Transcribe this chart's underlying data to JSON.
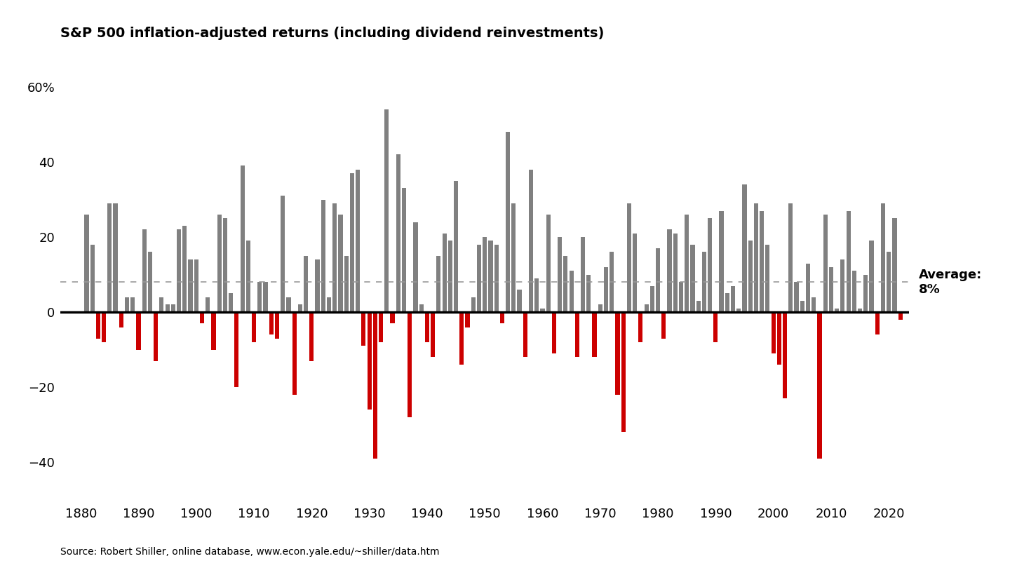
{
  "title": "S&P 500 inflation-adjusted returns (including dividend reinvestments)",
  "source": "Source: Robert Shiller, online database, www.econ.yale.edu/~shiller/data.htm",
  "average_label_line1": "Average:",
  "average_label_line2": "8%",
  "average_value": 8,
  "ylim": [
    -50,
    65
  ],
  "yticks": [
    -40,
    -20,
    0,
    20,
    40,
    60
  ],
  "positive_color": "#808080",
  "negative_color": "#CC0000",
  "average_line_color": "#999999",
  "background_color": "#ffffff",
  "data": {
    "1881": 26.0,
    "1882": 18.0,
    "1883": -7.0,
    "1884": -8.0,
    "1885": 29.0,
    "1886": 29.0,
    "1887": -4.0,
    "1888": 4.0,
    "1889": 4.0,
    "1890": -10.0,
    "1891": 22.0,
    "1892": 16.0,
    "1893": -13.0,
    "1894": 4.0,
    "1895": 2.0,
    "1896": 2.0,
    "1897": 22.0,
    "1898": 23.0,
    "1899": 14.0,
    "1900": 14.0,
    "1901": -3.0,
    "1902": 4.0,
    "1903": -10.0,
    "1904": 26.0,
    "1905": 25.0,
    "1906": 5.0,
    "1907": -20.0,
    "1908": 39.0,
    "1909": 19.0,
    "1910": -8.0,
    "1911": 8.0,
    "1912": 8.0,
    "1913": -6.0,
    "1914": -7.0,
    "1915": 31.0,
    "1916": 4.0,
    "1917": -22.0,
    "1918": 2.0,
    "1919": 15.0,
    "1920": -13.0,
    "1921": 14.0,
    "1922": 30.0,
    "1923": 4.0,
    "1924": 29.0,
    "1925": 26.0,
    "1926": 15.0,
    "1927": 37.0,
    "1928": 38.0,
    "1929": -9.0,
    "1930": -26.0,
    "1931": -39.0,
    "1932": -8.0,
    "1933": 54.0,
    "1934": -3.0,
    "1935": 42.0,
    "1936": 33.0,
    "1937": -28.0,
    "1938": 24.0,
    "1939": 2.0,
    "1940": -8.0,
    "1941": -12.0,
    "1942": 15.0,
    "1943": 21.0,
    "1944": 19.0,
    "1945": 35.0,
    "1946": -14.0,
    "1947": -4.0,
    "1948": 4.0,
    "1949": 18.0,
    "1950": 20.0,
    "1951": 19.0,
    "1952": 18.0,
    "1953": -3.0,
    "1954": 48.0,
    "1955": 29.0,
    "1956": 6.0,
    "1957": -12.0,
    "1958": 38.0,
    "1959": 9.0,
    "1960": 1.0,
    "1961": 26.0,
    "1962": -11.0,
    "1963": 20.0,
    "1964": 15.0,
    "1965": 11.0,
    "1966": -12.0,
    "1967": 20.0,
    "1968": 10.0,
    "1969": -12.0,
    "1970": 2.0,
    "1971": 12.0,
    "1972": 16.0,
    "1973": -22.0,
    "1974": -32.0,
    "1975": 29.0,
    "1976": 21.0,
    "1977": -8.0,
    "1978": 2.0,
    "1979": 7.0,
    "1980": 17.0,
    "1981": -7.0,
    "1982": 22.0,
    "1983": 21.0,
    "1984": 8.0,
    "1985": 26.0,
    "1986": 18.0,
    "1987": 3.0,
    "1988": 16.0,
    "1989": 25.0,
    "1990": -8.0,
    "1991": 27.0,
    "1992": 5.0,
    "1993": 7.0,
    "1994": 1.0,
    "1995": 34.0,
    "1996": 19.0,
    "1997": 29.0,
    "1998": 27.0,
    "1999": 18.0,
    "2000": -11.0,
    "2001": -14.0,
    "2002": -23.0,
    "2003": 29.0,
    "2004": 8.0,
    "2005": 3.0,
    "2006": 13.0,
    "2007": 4.0,
    "2008": -39.0,
    "2009": 26.0,
    "2010": 12.0,
    "2011": 1.0,
    "2012": 14.0,
    "2013": 27.0,
    "2014": 11.0,
    "2015": 1.0,
    "2016": 10.0,
    "2017": 19.0,
    "2018": -6.0,
    "2019": 29.0,
    "2020": 16.0,
    "2021": 25.0,
    "2022": -2.0
  }
}
